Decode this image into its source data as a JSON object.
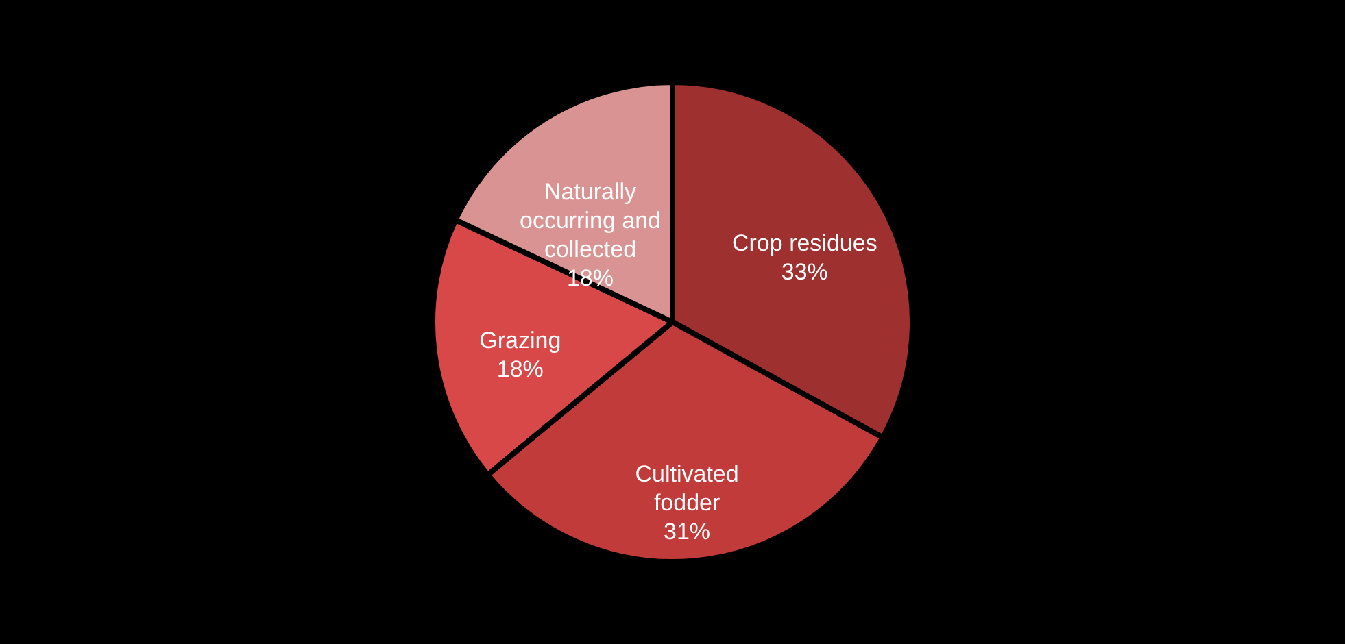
{
  "chart_data": {
    "type": "pie",
    "categories": [
      "Crop residues",
      "Cultivated fodder",
      "Grazing",
      "Naturally occurring and collected"
    ],
    "values": [
      33,
      31,
      18,
      18
    ],
    "value_labels": [
      "33%",
      "31%",
      "18%",
      "18%"
    ],
    "colors": [
      "#9e3030",
      "#c23b3b",
      "#d84848",
      "#d99393"
    ]
  }
}
